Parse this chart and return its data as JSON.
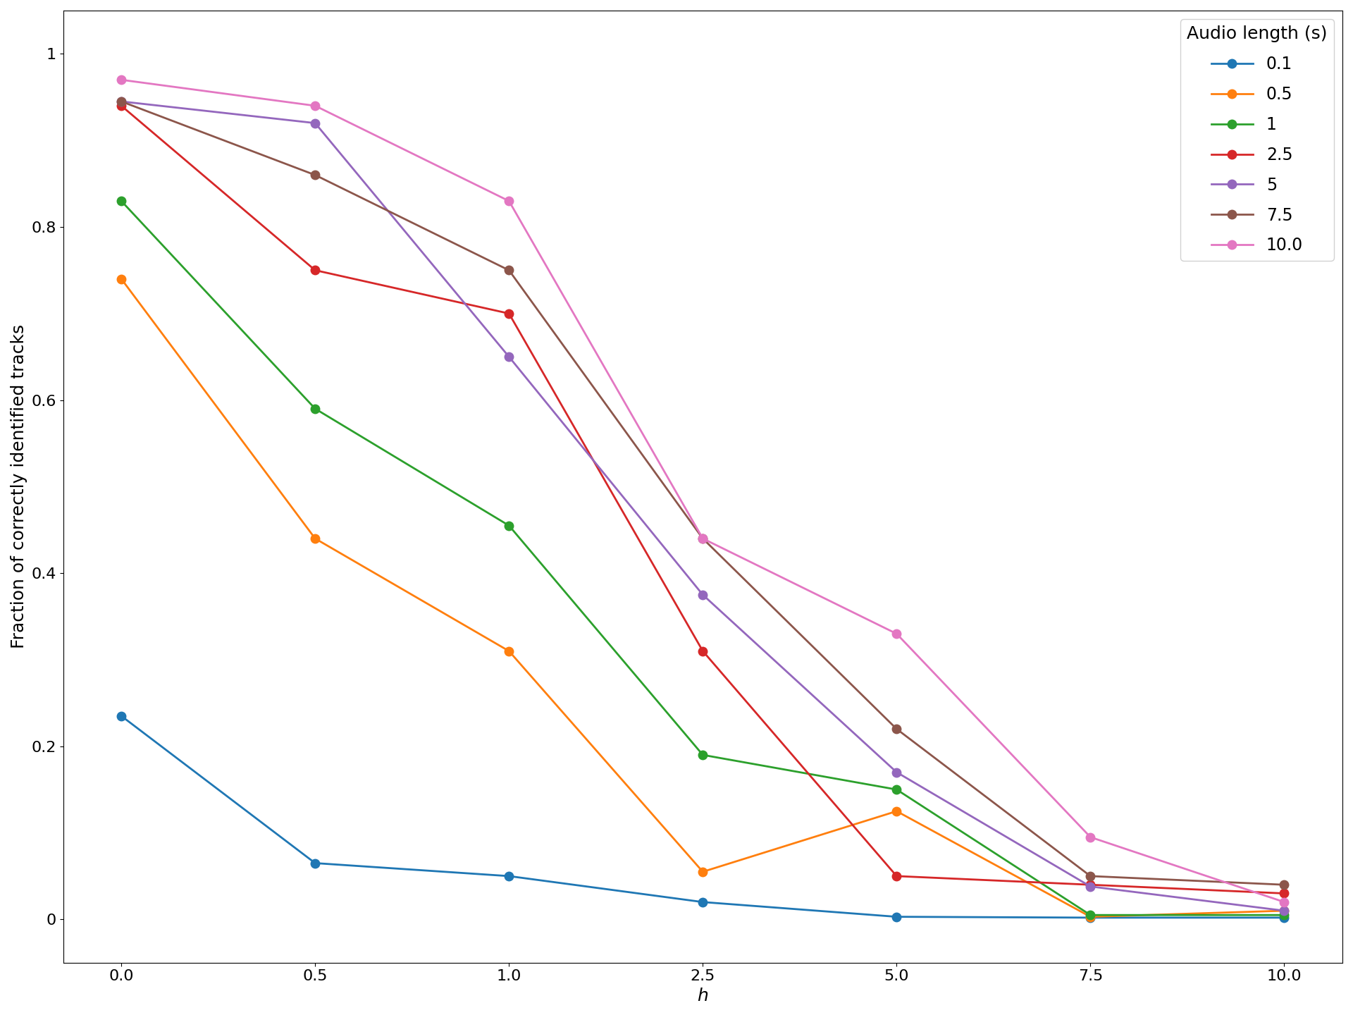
{
  "x_positions": [
    0,
    1,
    2,
    3,
    4,
    5,
    6
  ],
  "x_labels": [
    "0.0",
    "0.5",
    "1.0",
    "2.5",
    "5.0",
    "7.5",
    "10.0"
  ],
  "series": [
    {
      "label": "0.1",
      "color": "#1f77b4",
      "values": [
        0.235,
        0.065,
        0.05,
        0.02,
        0.003,
        0.002,
        0.002
      ]
    },
    {
      "label": "0.5",
      "color": "#ff7f0e",
      "values": [
        0.74,
        0.44,
        0.31,
        0.055,
        0.125,
        0.003,
        0.01
      ]
    },
    {
      "label": "1",
      "color": "#2ca02c",
      "values": [
        0.83,
        0.59,
        0.455,
        0.19,
        0.15,
        0.005,
        0.005
      ]
    },
    {
      "label": "2.5",
      "color": "#d62728",
      "values": [
        0.94,
        0.75,
        0.7,
        0.31,
        0.05,
        0.04,
        0.03
      ]
    },
    {
      "label": "5",
      "color": "#9467bd",
      "values": [
        0.945,
        0.92,
        0.65,
        0.375,
        0.17,
        0.038,
        0.01
      ]
    },
    {
      "label": "7.5",
      "color": "#8c564b",
      "values": [
        0.945,
        0.86,
        0.75,
        0.44,
        0.22,
        0.05,
        0.04
      ]
    },
    {
      "label": "10.0",
      "color": "#e377c2",
      "values": [
        0.97,
        0.94,
        0.83,
        0.44,
        0.33,
        0.095,
        0.02
      ]
    }
  ],
  "xlabel": "h",
  "ylabel": "Fraction of correctly identified tracks",
  "legend_title": "Audio length (s)",
  "ylim": [
    -0.05,
    1.05
  ],
  "yticks": [
    0.0,
    0.2,
    0.4,
    0.6,
    0.8,
    1.0
  ],
  "marker": "o",
  "markersize": 9,
  "linewidth": 2.0,
  "tick_fontsize": 16,
  "label_fontsize": 18,
  "legend_fontsize": 17,
  "legend_title_fontsize": 18
}
